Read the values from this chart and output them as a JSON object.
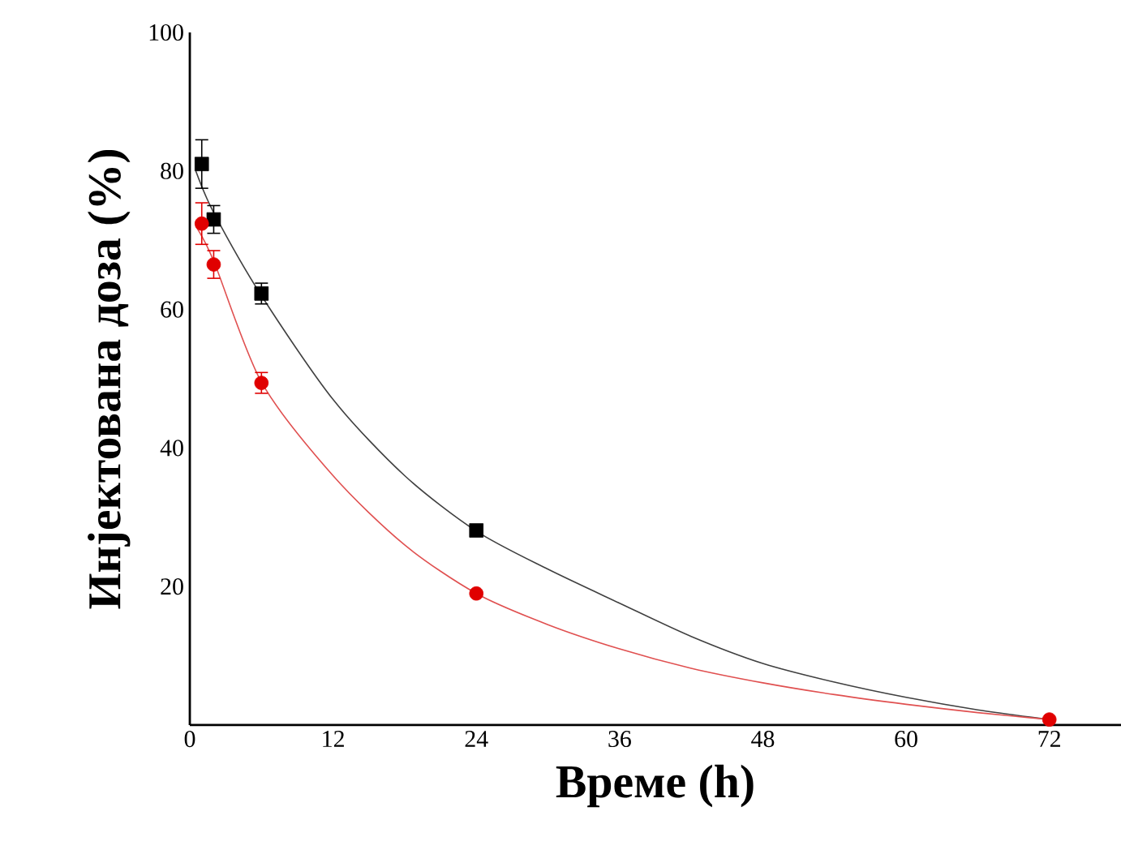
{
  "chart_data": {
    "type": "scatter",
    "xlabel": "Време (h)",
    "ylabel": "Инјектована доза (%)",
    "xlim": [
      0,
      78
    ],
    "ylim": [
      0,
      100
    ],
    "xticks": [
      0,
      12,
      24,
      36,
      48,
      60,
      72
    ],
    "yticks": [
      20,
      40,
      60,
      80,
      100
    ],
    "grid": false,
    "series": [
      {
        "type": "line",
        "color": "#404040",
        "marker": "none",
        "x": [
          0.5,
          2,
          6,
          12,
          18,
          24,
          30,
          36,
          42,
          48,
          54,
          60,
          66,
          72
        ],
        "values": [
          80,
          74,
          62,
          47,
          36,
          28,
          22.5,
          17.6,
          12.8,
          8.9,
          6.2,
          4,
          2.2,
          0.8
        ]
      },
      {
        "type": "line",
        "color": "#e05050",
        "marker": "none",
        "x": [
          0.5,
          2,
          6,
          12,
          18,
          24,
          30,
          36,
          42,
          48,
          54,
          60,
          66,
          72
        ],
        "values": [
          72,
          67,
          49.5,
          36,
          26,
          19,
          14.5,
          11,
          8.2,
          6.1,
          4.4,
          3,
          1.8,
          0.8
        ]
      },
      {
        "color": "#000000",
        "marker": "square",
        "x": [
          1,
          2,
          6,
          24
        ],
        "values": [
          81,
          73,
          62.3,
          28.1
        ],
        "errors": [
          3.5,
          2,
          1.5,
          null
        ]
      },
      {
        "color": "#e00000",
        "marker": "circle",
        "x": [
          1,
          2,
          6,
          24,
          72
        ],
        "values": [
          72.4,
          66.5,
          49.4,
          19,
          0.8
        ],
        "errors": [
          3,
          2,
          1.5,
          null,
          null
        ]
      }
    ]
  }
}
